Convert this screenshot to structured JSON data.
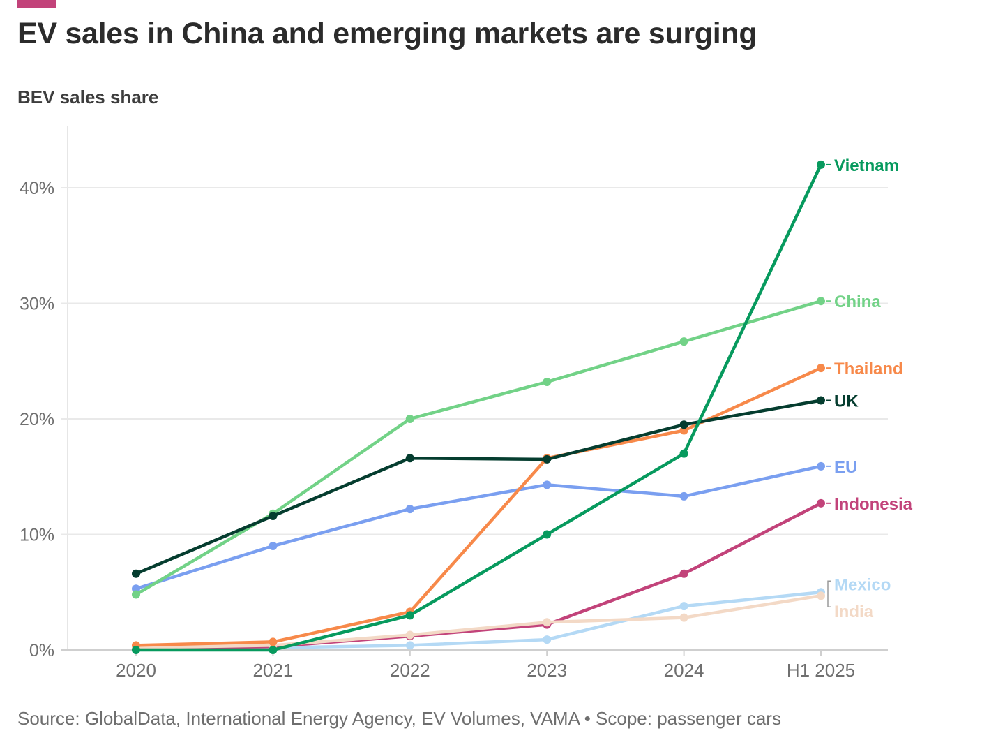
{
  "header": {
    "accent_color": "#c2437a",
    "title": "EV sales in China and emerging markets are surging",
    "subtitle": "BEV sales share"
  },
  "footer": {
    "source": "Source: GlobalData, International Energy Agency, EV Volumes, VAMA • Scope: passenger cars"
  },
  "chart_data": {
    "type": "line",
    "title": "EV sales in China and emerging markets are surging",
    "ylabel": "BEV sales share",
    "categories": [
      "2020",
      "2021",
      "2022",
      "2023",
      "2024",
      "H1 2025"
    ],
    "ylim": [
      0,
      45
    ],
    "yticks": [
      0,
      10,
      20,
      30,
      40
    ],
    "ytick_labels": [
      "0%",
      "10%",
      "20%",
      "30%",
      "40%"
    ],
    "grid": "horizontal",
    "legend": "direct labels at line ends",
    "series": [
      {
        "name": "Mexico",
        "color": "#b4d9f5",
        "values": [
          0.1,
          0.2,
          0.4,
          0.9,
          3.8,
          5.0
        ]
      },
      {
        "name": "Indonesia",
        "color": "#c2437a",
        "values": [
          0.1,
          0.3,
          1.2,
          2.2,
          6.6,
          12.7
        ]
      },
      {
        "name": "India",
        "color": "#f3d9c6",
        "values": [
          0.2,
          0.4,
          1.3,
          2.4,
          2.8,
          4.7
        ]
      },
      {
        "name": "EU",
        "color": "#7a9ff0",
        "values": [
          5.3,
          9.0,
          12.2,
          14.3,
          13.3,
          15.9
        ]
      },
      {
        "name": "Thailand",
        "color": "#f7894a",
        "values": [
          0.4,
          0.7,
          3.3,
          16.6,
          19.0,
          24.4
        ]
      },
      {
        "name": "China",
        "color": "#72d287",
        "values": [
          4.8,
          11.8,
          20.0,
          23.2,
          26.7,
          30.2
        ]
      },
      {
        "name": "UK",
        "color": "#053d2f",
        "values": [
          6.6,
          11.6,
          16.6,
          16.5,
          19.5,
          21.6
        ]
      },
      {
        "name": "Vietnam",
        "color": "#079a5e",
        "values": [
          0.0,
          0.0,
          3.0,
          10.0,
          17.0,
          42.0
        ]
      }
    ],
    "end_labels": [
      "Vietnam",
      "China",
      "Thailand",
      "UK",
      "EU",
      "Indonesia",
      "Mexico",
      "India"
    ]
  }
}
